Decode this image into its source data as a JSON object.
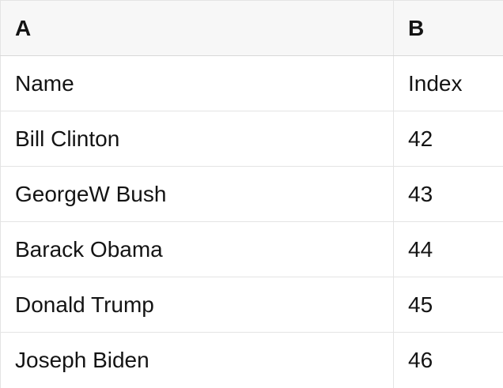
{
  "table": {
    "column_headers": [
      "A",
      "B"
    ],
    "rows": [
      [
        "Name",
        "Index"
      ],
      [
        "Bill Clinton",
        "42"
      ],
      [
        "GeorgeW Bush",
        "43"
      ],
      [
        "Barack Obama",
        "44"
      ],
      [
        "Donald Trump",
        "45"
      ],
      [
        "Joseph Biden",
        "46"
      ]
    ]
  },
  "colors": {
    "header_background": "#f7f7f7",
    "cell_background": "#ffffff",
    "grid_line": "#e4e4e4",
    "header_underline": "#d8d8d8",
    "text": "#141414"
  }
}
